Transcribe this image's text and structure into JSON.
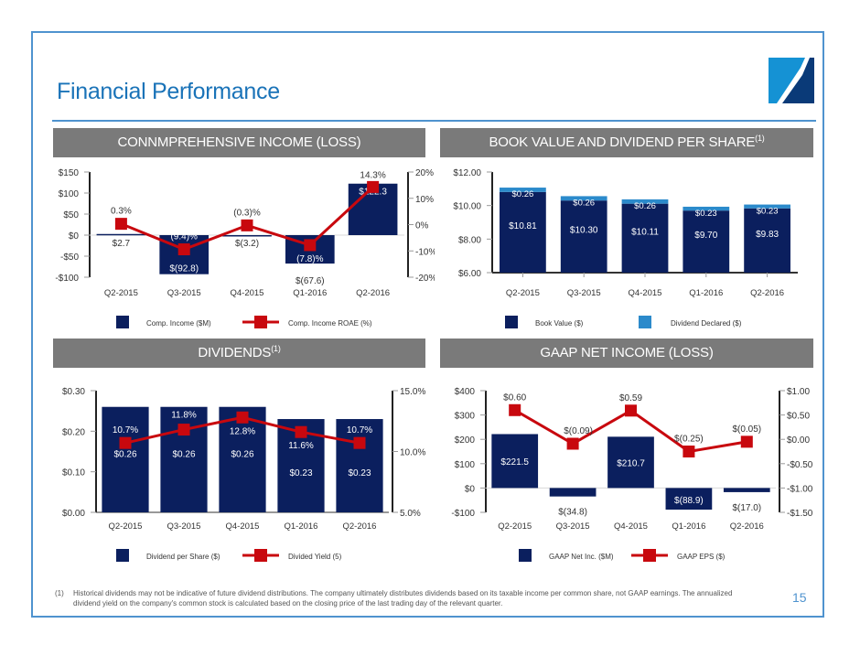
{
  "page": {
    "title": "Financial Performance",
    "page_number": "15",
    "footnote_marker": "(1)",
    "footnote_text": "Historical dividends may not be indicative of future dividend distributions.  The company ultimately distributes dividends based on its taxable income per common share, not GAAP earnings. The annualized dividend yield on the company's common stock is calculated based on the closing price of the last trading day of the relevant quarter.",
    "colors": {
      "accent": "#4f93cf",
      "title": "#1a73b8",
      "navy": "#0b1f5e",
      "light_blue": "#2b8acb",
      "red": "#c8080e",
      "header_gray": "#7a7a7a"
    }
  },
  "panels": [
    {
      "id": "comp-income",
      "header": "CONNMPREHENSIVE INCOME (LOSS)",
      "header_sup": ""
    },
    {
      "id": "book-value",
      "header": "BOOK VALUE AND DIVIDEND PER SHARE",
      "header_sup": "(1)"
    },
    {
      "id": "dividends",
      "header": "DIVIDENDS",
      "header_sup": "(1)"
    },
    {
      "id": "gaap-net-income",
      "header": "GAAP NET INCOME (LOSS)",
      "header_sup": ""
    }
  ],
  "chart_data": [
    {
      "id": "comp-income",
      "type": "bar",
      "title": "CONNMPREHENSIVE INCOME (LOSS)",
      "categories": [
        "Q2-2015",
        "Q3-2015",
        "Q4-2015",
        "Q1-2016",
        "Q2-2016"
      ],
      "series": [
        {
          "name": "Comp. Income ($M)",
          "type": "bar",
          "axis": "left",
          "values": [
            2.7,
            -92.8,
            -3.2,
            -67.6,
            122.3
          ],
          "labels": [
            "$2.7",
            "$(92.8)",
            "$(3.2)",
            "$(67.6)",
            "$122.3"
          ]
        },
        {
          "name": "Comp. Income ROAE (%)",
          "type": "line",
          "axis": "right",
          "values": [
            0.3,
            -9.4,
            -0.3,
            -7.8,
            14.3
          ],
          "labels": [
            "0.3%",
            "(9.4)%",
            "(0.3)%",
            "(7.8)%",
            "14.3%"
          ]
        }
      ],
      "ylim": [
        -100,
        150
      ],
      "yticks": [
        -100,
        -50,
        0,
        50,
        100,
        150
      ],
      "ytick_labels": [
        "-$100",
        "-$50",
        "$0",
        "$50",
        "$100",
        "$150"
      ],
      "y2lim": [
        -20,
        20
      ],
      "y2ticks": [
        -20,
        -10,
        0,
        10,
        20
      ],
      "y2tick_labels": [
        "-20%",
        "-10%",
        "0%",
        "10%",
        "20%"
      ],
      "legend": "bottom"
    },
    {
      "id": "book-value",
      "type": "bar",
      "stacked": true,
      "title": "BOOK VALUE AND DIVIDEND PER SHARE(1)",
      "categories": [
        "Q2-2015",
        "Q3-2015",
        "Q4-2015",
        "Q1-2016",
        "Q2-2016"
      ],
      "series": [
        {
          "name": "Book Value ($)",
          "type": "bar",
          "axis": "left",
          "values": [
            10.81,
            10.3,
            10.11,
            9.7,
            9.83
          ],
          "labels": [
            "$10.81",
            "$10.30",
            "$10.11",
            "$9.70",
            "$9.83"
          ]
        },
        {
          "name": "Dividend Declared ($)",
          "type": "bar",
          "axis": "left",
          "values": [
            0.26,
            0.26,
            0.26,
            0.23,
            0.23
          ],
          "labels": [
            "$0.26",
            "$0.26",
            "$0.26",
            "$0.23",
            "$0.23"
          ]
        }
      ],
      "ylim": [
        6,
        12
      ],
      "yticks": [
        6,
        8,
        10,
        12
      ],
      "ytick_labels": [
        "$6.00",
        "$8.00",
        "$10.00",
        "$12.00"
      ],
      "legend": "bottom"
    },
    {
      "id": "dividends",
      "type": "bar",
      "title": "DIVIDENDS(1)",
      "categories": [
        "Q2-2015",
        "Q3-2015",
        "Q4-2015",
        "Q1-2016",
        "Q2-2016"
      ],
      "series": [
        {
          "name": "Dividend per Share ($)",
          "type": "bar",
          "axis": "left",
          "values": [
            0.26,
            0.26,
            0.26,
            0.23,
            0.23
          ],
          "labels": [
            "$0.26",
            "$0.26",
            "$0.26",
            "$0.23",
            "$0.23"
          ]
        },
        {
          "name": "Divided Yield (5)",
          "type": "line",
          "axis": "right",
          "values": [
            10.7,
            11.8,
            12.8,
            11.6,
            10.7
          ],
          "labels": [
            "10.7%",
            "11.8%",
            "12.8%",
            "11.6%",
            "10.7%"
          ]
        }
      ],
      "ylim": [
        0,
        0.3
      ],
      "yticks": [
        0,
        0.1,
        0.2,
        0.3
      ],
      "ytick_labels": [
        "$0.00",
        "$0.10",
        "$0.20",
        "$0.30"
      ],
      "y2lim": [
        5,
        15
      ],
      "y2ticks": [
        5,
        10,
        15
      ],
      "y2tick_labels": [
        "5.0%",
        "10.0%",
        "15.0%"
      ],
      "legend": "bottom"
    },
    {
      "id": "gaap-net-income",
      "type": "bar",
      "title": "GAAP NET INCOME (LOSS)",
      "categories": [
        "Q2-2015",
        "Q3-2015",
        "Q4-2015",
        "Q1-2016",
        "Q2-2016"
      ],
      "series": [
        {
          "name": "GAAP Net Inc. ($M)",
          "type": "bar",
          "axis": "left",
          "values": [
            221.5,
            -34.8,
            210.7,
            -88.9,
            -17.0
          ],
          "labels": [
            "$221.5",
            "$(34.8)",
            "$210.7",
            "$(88.9)",
            "$(17.0)"
          ]
        },
        {
          "name": "GAAP EPS ($)",
          "type": "line",
          "axis": "right",
          "values": [
            0.6,
            -0.09,
            0.59,
            -0.25,
            -0.05
          ],
          "labels": [
            "$0.60",
            "$(0.09)",
            "$0.59",
            "$(0.25)",
            "$(0.05)"
          ]
        }
      ],
      "ylim": [
        -100,
        400
      ],
      "yticks": [
        -100,
        0,
        100,
        200,
        300,
        400
      ],
      "ytick_labels": [
        "-$100",
        "$0",
        "$100",
        "$200",
        "$300",
        "$400"
      ],
      "y2lim": [
        -1.5,
        1.0
      ],
      "y2ticks": [
        -1.5,
        -1.0,
        -0.5,
        0,
        0.5,
        1.0
      ],
      "y2tick_labels": [
        "-$1.50",
        "-$1.00",
        "-$0.50",
        "$0.00",
        "$0.50",
        "$1.00"
      ],
      "legend": "bottom"
    }
  ]
}
